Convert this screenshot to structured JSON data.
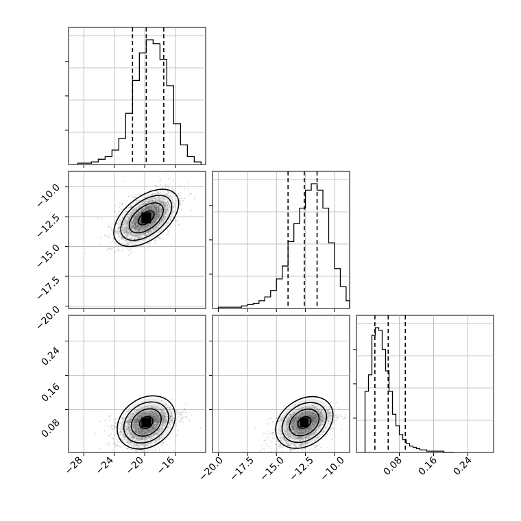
{
  "chart_data": [
    {
      "type": "histogram",
      "panel": "p0_marginal",
      "xlim": [
        -30,
        -12
      ],
      "grid": true,
      "bins": [
        -28.8,
        -27.9,
        -27.0,
        -26.1,
        -25.2,
        -24.3,
        -23.4,
        -22.5,
        -21.6,
        -20.7,
        -19.8,
        -18.9,
        -18.0,
        -17.1,
        -16.2,
        -15.3,
        -14.4,
        -13.5,
        -12.6
      ],
      "counts": [
        1,
        1,
        2,
        4,
        6,
        11,
        20,
        39,
        64,
        85,
        95,
        92,
        80,
        60,
        31,
        15,
        6,
        2
      ],
      "quantiles": [
        -21.6,
        -19.8,
        -17.5
      ]
    },
    {
      "type": "histogram",
      "panel": "p1_marginal",
      "xlim": [
        -20.5,
        -8.7
      ],
      "grid": true,
      "bins": [
        -20.0,
        -19.5,
        -19.0,
        -18.5,
        -18.0,
        -17.5,
        -17.0,
        -16.5,
        -16.0,
        -15.5,
        -15.0,
        -14.5,
        -14.0,
        -13.5,
        -13.0,
        -12.5,
        -12.0,
        -11.5,
        -11.0,
        -10.5,
        -10.0,
        -9.5,
        -9.0,
        -8.7
      ],
      "counts": [
        1,
        1,
        1,
        1,
        2,
        3,
        4,
        6,
        9,
        14,
        23,
        33,
        52,
        66,
        78,
        92,
        97,
        92,
        78,
        51,
        31,
        17,
        6
      ],
      "quantiles": [
        -14.0,
        -12.6,
        -11.5
      ]
    },
    {
      "type": "histogram",
      "panel": "p2_marginal",
      "xlim": [
        -0.02,
        0.3
      ],
      "grid": true,
      "bins": [
        0.0,
        0.008,
        0.016,
        0.024,
        0.032,
        0.04,
        0.048,
        0.056,
        0.064,
        0.072,
        0.08,
        0.088,
        0.096,
        0.104,
        0.112,
        0.12,
        0.128,
        0.136,
        0.144,
        0.152,
        0.16,
        0.168,
        0.176,
        0.184,
        0.192,
        0.2,
        0.208
      ],
      "counts": [
        48,
        61,
        92,
        98,
        96,
        81,
        64,
        48,
        30,
        21,
        14,
        10,
        7,
        5,
        4,
        3,
        2,
        2,
        1,
        1,
        1,
        1,
        1,
        0,
        0,
        0
      ],
      "quantiles": [
        0.023,
        0.054,
        0.094
      ]
    },
    {
      "type": "scatter",
      "panel": "p0_vs_p1",
      "xlim": [
        -30,
        -12
      ],
      "ylim": [
        -20.2,
        -8.7
      ],
      "center": [
        -19.8,
        -12.6
      ],
      "contour_levels": [
        "0.5-sigma",
        "1-sigma",
        "1.5-sigma",
        "2-sigma"
      ]
    },
    {
      "type": "scatter",
      "panel": "p0_vs_p2",
      "xlim": [
        -30,
        -12
      ],
      "ylim": [
        -0.02,
        0.3
      ],
      "center": [
        -19.8,
        0.05
      ],
      "contour_levels": [
        "0.5-sigma",
        "1-sigma",
        "1.5-sigma",
        "2-sigma"
      ]
    },
    {
      "type": "scatter",
      "panel": "p1_vs_p2",
      "xlim": [
        -20.5,
        -8.7
      ],
      "ylim": [
        -0.02,
        0.3
      ],
      "center": [
        -12.6,
        0.05
      ],
      "contour_levels": [
        "0.5-sigma",
        "1-sigma",
        "1.5-sigma",
        "2-sigma"
      ]
    }
  ],
  "ticks": {
    "col0_x": [
      "−28",
      "−24",
      "−20",
      "−16"
    ],
    "col1_x": [
      "−20.0",
      "−17.5",
      "−15.0",
      "−12.5",
      "−10.0"
    ],
    "col2_x": [
      "0.08",
      "0.16",
      "0.24"
    ],
    "row1_y": [
      "−10.0",
      "−12.5",
      "−15.0",
      "−17.5",
      "−20.0"
    ],
    "row2_y": [
      "0.24",
      "0.16",
      "0.08"
    ]
  },
  "colors": {
    "line": "#000000",
    "points": "#9a9a9a",
    "grid": "#b0b0b0",
    "frame": "#000000"
  }
}
